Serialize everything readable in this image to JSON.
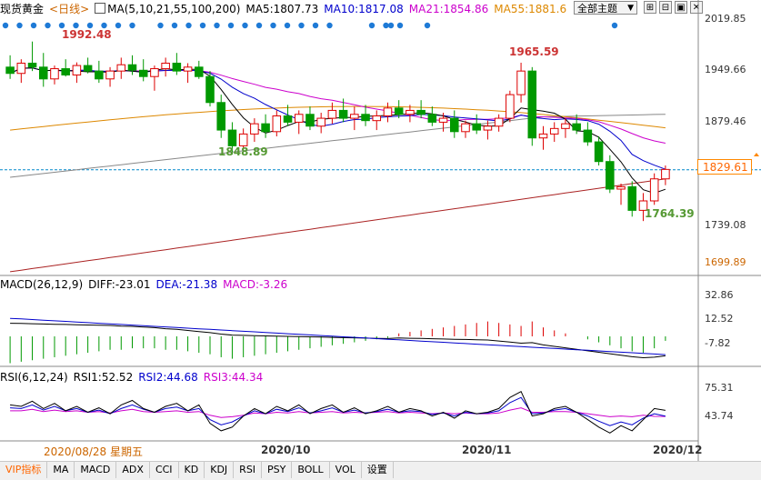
{
  "header": {
    "title": "现货黄金",
    "period": "<日线>",
    "ma_label": "MA(5,10,21,55,100,200)",
    "ma_values": [
      {
        "text": "MA5:1807.73",
        "color": "#000000"
      },
      {
        "text": "MA10:1817.08",
        "color": "#0000cc"
      },
      {
        "text": "MA21:1854.86",
        "color": "#cc00cc"
      },
      {
        "text": "MA55:1881.6",
        "color": "#dd8800"
      }
    ],
    "theme_button": "全部主题",
    "theme_arrow": "▼",
    "btn_icons": [
      "⊞",
      "⊟",
      "▣",
      "✕"
    ]
  },
  "price_axis": {
    "labels": [
      "2019.85",
      "1949.66",
      "1879.46",
      "1829.61",
      "1739.08",
      "1699.89"
    ],
    "current": "1829.61"
  },
  "annotations": {
    "high_left": "1992.48",
    "high_right": "1965.59",
    "low_left": "1848.89",
    "low_right": "1764.39"
  },
  "macd": {
    "label": "MACD(26,12,9)",
    "diff": "DIFF:-23.01",
    "dea": "DEA:-21.38",
    "macd": "MACD:-3.26",
    "axis": [
      "32.86",
      "12.52",
      "-7.82"
    ]
  },
  "rsi": {
    "label": "RSI(6,12,24)",
    "rsi1": "RSI1:52.52",
    "rsi2": "RSI2:44.68",
    "rsi3": "RSI3:44.34",
    "axis": [
      "75.31",
      "43.74"
    ]
  },
  "dates": {
    "cursor": "2020/08/28 星期五",
    "m1": "2020/10",
    "m2": "2020/11",
    "m3": "2020/12"
  },
  "tabs": [
    "VIP指标",
    "MA",
    "MACD",
    "ADX",
    "CCI",
    "KD",
    "KDJ",
    "RSI",
    "PSY",
    "BOLL",
    "VOL",
    "设置"
  ],
  "colors": {
    "up": "#dd0000",
    "down": "#009900",
    "ma5": "#000000",
    "ma10": "#0000cc",
    "ma21": "#cc00cc",
    "ma55": "#dd8800",
    "ma100": "#888888",
    "ma200": "#aa2222",
    "dots": "#1e7ad6",
    "current_line": "#0088cc"
  },
  "chart_data": {
    "type": "candlestick",
    "series_ohlc": [
      [
        1960,
        1975,
        1945,
        1952
      ],
      [
        1952,
        1970,
        1940,
        1965
      ],
      [
        1965,
        1992.48,
        1955,
        1960
      ],
      [
        1960,
        1978,
        1935,
        1945
      ],
      [
        1945,
        1962,
        1938,
        1958
      ],
      [
        1958,
        1970,
        1948,
        1950
      ],
      [
        1950,
        1966,
        1940,
        1962
      ],
      [
        1962,
        1972,
        1952,
        1955
      ],
      [
        1955,
        1968,
        1940,
        1945
      ],
      [
        1945,
        1960,
        1935,
        1955
      ],
      [
        1955,
        1972,
        1945,
        1963
      ],
      [
        1963,
        1975,
        1950,
        1956
      ],
      [
        1956,
        1970,
        1942,
        1948
      ],
      [
        1948,
        1962,
        1930,
        1958
      ],
      [
        1958,
        1972,
        1948,
        1965
      ],
      [
        1965,
        1978,
        1950,
        1955
      ],
      [
        1955,
        1965,
        1940,
        1960
      ],
      [
        1960,
        1968,
        1945,
        1948
      ],
      [
        1948,
        1955,
        1910,
        1915
      ],
      [
        1915,
        1925,
        1870,
        1880
      ],
      [
        1880,
        1890,
        1848.89,
        1860
      ],
      [
        1860,
        1882,
        1855,
        1875
      ],
      [
        1875,
        1895,
        1865,
        1888
      ],
      [
        1888,
        1900,
        1870,
        1878
      ],
      [
        1878,
        1905,
        1872,
        1898
      ],
      [
        1898,
        1912,
        1885,
        1890
      ],
      [
        1890,
        1905,
        1875,
        1900
      ],
      [
        1900,
        1910,
        1880,
        1885
      ],
      [
        1885,
        1902,
        1876,
        1895
      ],
      [
        1895,
        1915,
        1888,
        1905
      ],
      [
        1905,
        1920,
        1890,
        1895
      ],
      [
        1895,
        1910,
        1880,
        1900
      ],
      [
        1900,
        1912,
        1885,
        1892
      ],
      [
        1892,
        1905,
        1880,
        1898
      ],
      [
        1898,
        1915,
        1890,
        1908
      ],
      [
        1908,
        1918,
        1895,
        1900
      ],
      [
        1900,
        1912,
        1890,
        1905
      ],
      [
        1905,
        1918,
        1895,
        1900
      ],
      [
        1900,
        1910,
        1885,
        1890
      ],
      [
        1890,
        1902,
        1878,
        1895
      ],
      [
        1895,
        1905,
        1870,
        1878
      ],
      [
        1878,
        1892,
        1870,
        1888
      ],
      [
        1888,
        1900,
        1875,
        1880
      ],
      [
        1880,
        1892,
        1868,
        1885
      ],
      [
        1885,
        1900,
        1878,
        1895
      ],
      [
        1895,
        1930,
        1890,
        1925
      ],
      [
        1925,
        1965.59,
        1915,
        1955
      ],
      [
        1955,
        1960,
        1860,
        1870
      ],
      [
        1870,
        1885,
        1855,
        1875
      ],
      [
        1875,
        1890,
        1865,
        1882
      ],
      [
        1882,
        1895,
        1870,
        1888
      ],
      [
        1888,
        1900,
        1875,
        1880
      ],
      [
        1880,
        1890,
        1860,
        1865
      ],
      [
        1865,
        1872,
        1835,
        1840
      ],
      [
        1840,
        1848,
        1800,
        1805
      ],
      [
        1805,
        1812,
        1785,
        1808
      ],
      [
        1808,
        1815,
        1770,
        1778
      ],
      [
        1778,
        1800,
        1764.39,
        1790
      ],
      [
        1790,
        1825,
        1785,
        1818
      ],
      [
        1818,
        1835,
        1810,
        1830
      ]
    ],
    "ylim": [
      1699.89,
      2019.85
    ],
    "macd_hist": [
      -18,
      -17,
      -16,
      -15,
      -14,
      -13,
      -12,
      -11,
      -10,
      -9,
      -9,
      -8,
      -8,
      -8,
      -9,
      -9,
      -10,
      -11,
      -12,
      -14,
      -15,
      -14,
      -13,
      -12,
      -11,
      -10,
      -9,
      -8,
      -7,
      -6,
      -5,
      -4,
      -3,
      -2,
      -1,
      2,
      3,
      4,
      5,
      6,
      7,
      8,
      9,
      10,
      9,
      8,
      7,
      10,
      6,
      4,
      2,
      0,
      -2,
      -4,
      -6,
      -8,
      -10,
      -11,
      -8,
      -3
    ],
    "rsi1": [
      60,
      58,
      65,
      55,
      62,
      52,
      58,
      50,
      56,
      48,
      60,
      66,
      55,
      50,
      58,
      62,
      52,
      60,
      35,
      25,
      30,
      45,
      55,
      48,
      58,
      52,
      60,
      48,
      55,
      60,
      50,
      56,
      48,
      52,
      58,
      50,
      55,
      52,
      45,
      50,
      42,
      52,
      48,
      50,
      55,
      70,
      78,
      45,
      48,
      55,
      58,
      50,
      40,
      30,
      22,
      32,
      25,
      40,
      55,
      52.52
    ],
    "rsi2": [
      56,
      55,
      60,
      53,
      58,
      52,
      55,
      50,
      53,
      48,
      55,
      60,
      54,
      50,
      55,
      57,
      52,
      55,
      40,
      33,
      37,
      45,
      52,
      48,
      54,
      51,
      56,
      49,
      52,
      56,
      50,
      53,
      49,
      51,
      54,
      50,
      52,
      51,
      47,
      49,
      45,
      50,
      48,
      49,
      52,
      63,
      70,
      48,
      49,
      53,
      55,
      50,
      45,
      38,
      32,
      37,
      33,
      42,
      48,
      44.68
    ],
    "rsi3": [
      52,
      52,
      54,
      51,
      53,
      51,
      52,
      50,
      51,
      49,
      52,
      54,
      51,
      50,
      51,
      52,
      50,
      51,
      46,
      43,
      44,
      46,
      49,
      48,
      50,
      49,
      51,
      49,
      50,
      51,
      49,
      50,
      49,
      50,
      51,
      49,
      50,
      49,
      48,
      49,
      48,
      49,
      48,
      48,
      49,
      53,
      56,
      50,
      50,
      51,
      51,
      50,
      48,
      46,
      44,
      45,
      44,
      46,
      44.5,
      44.34
    ]
  }
}
